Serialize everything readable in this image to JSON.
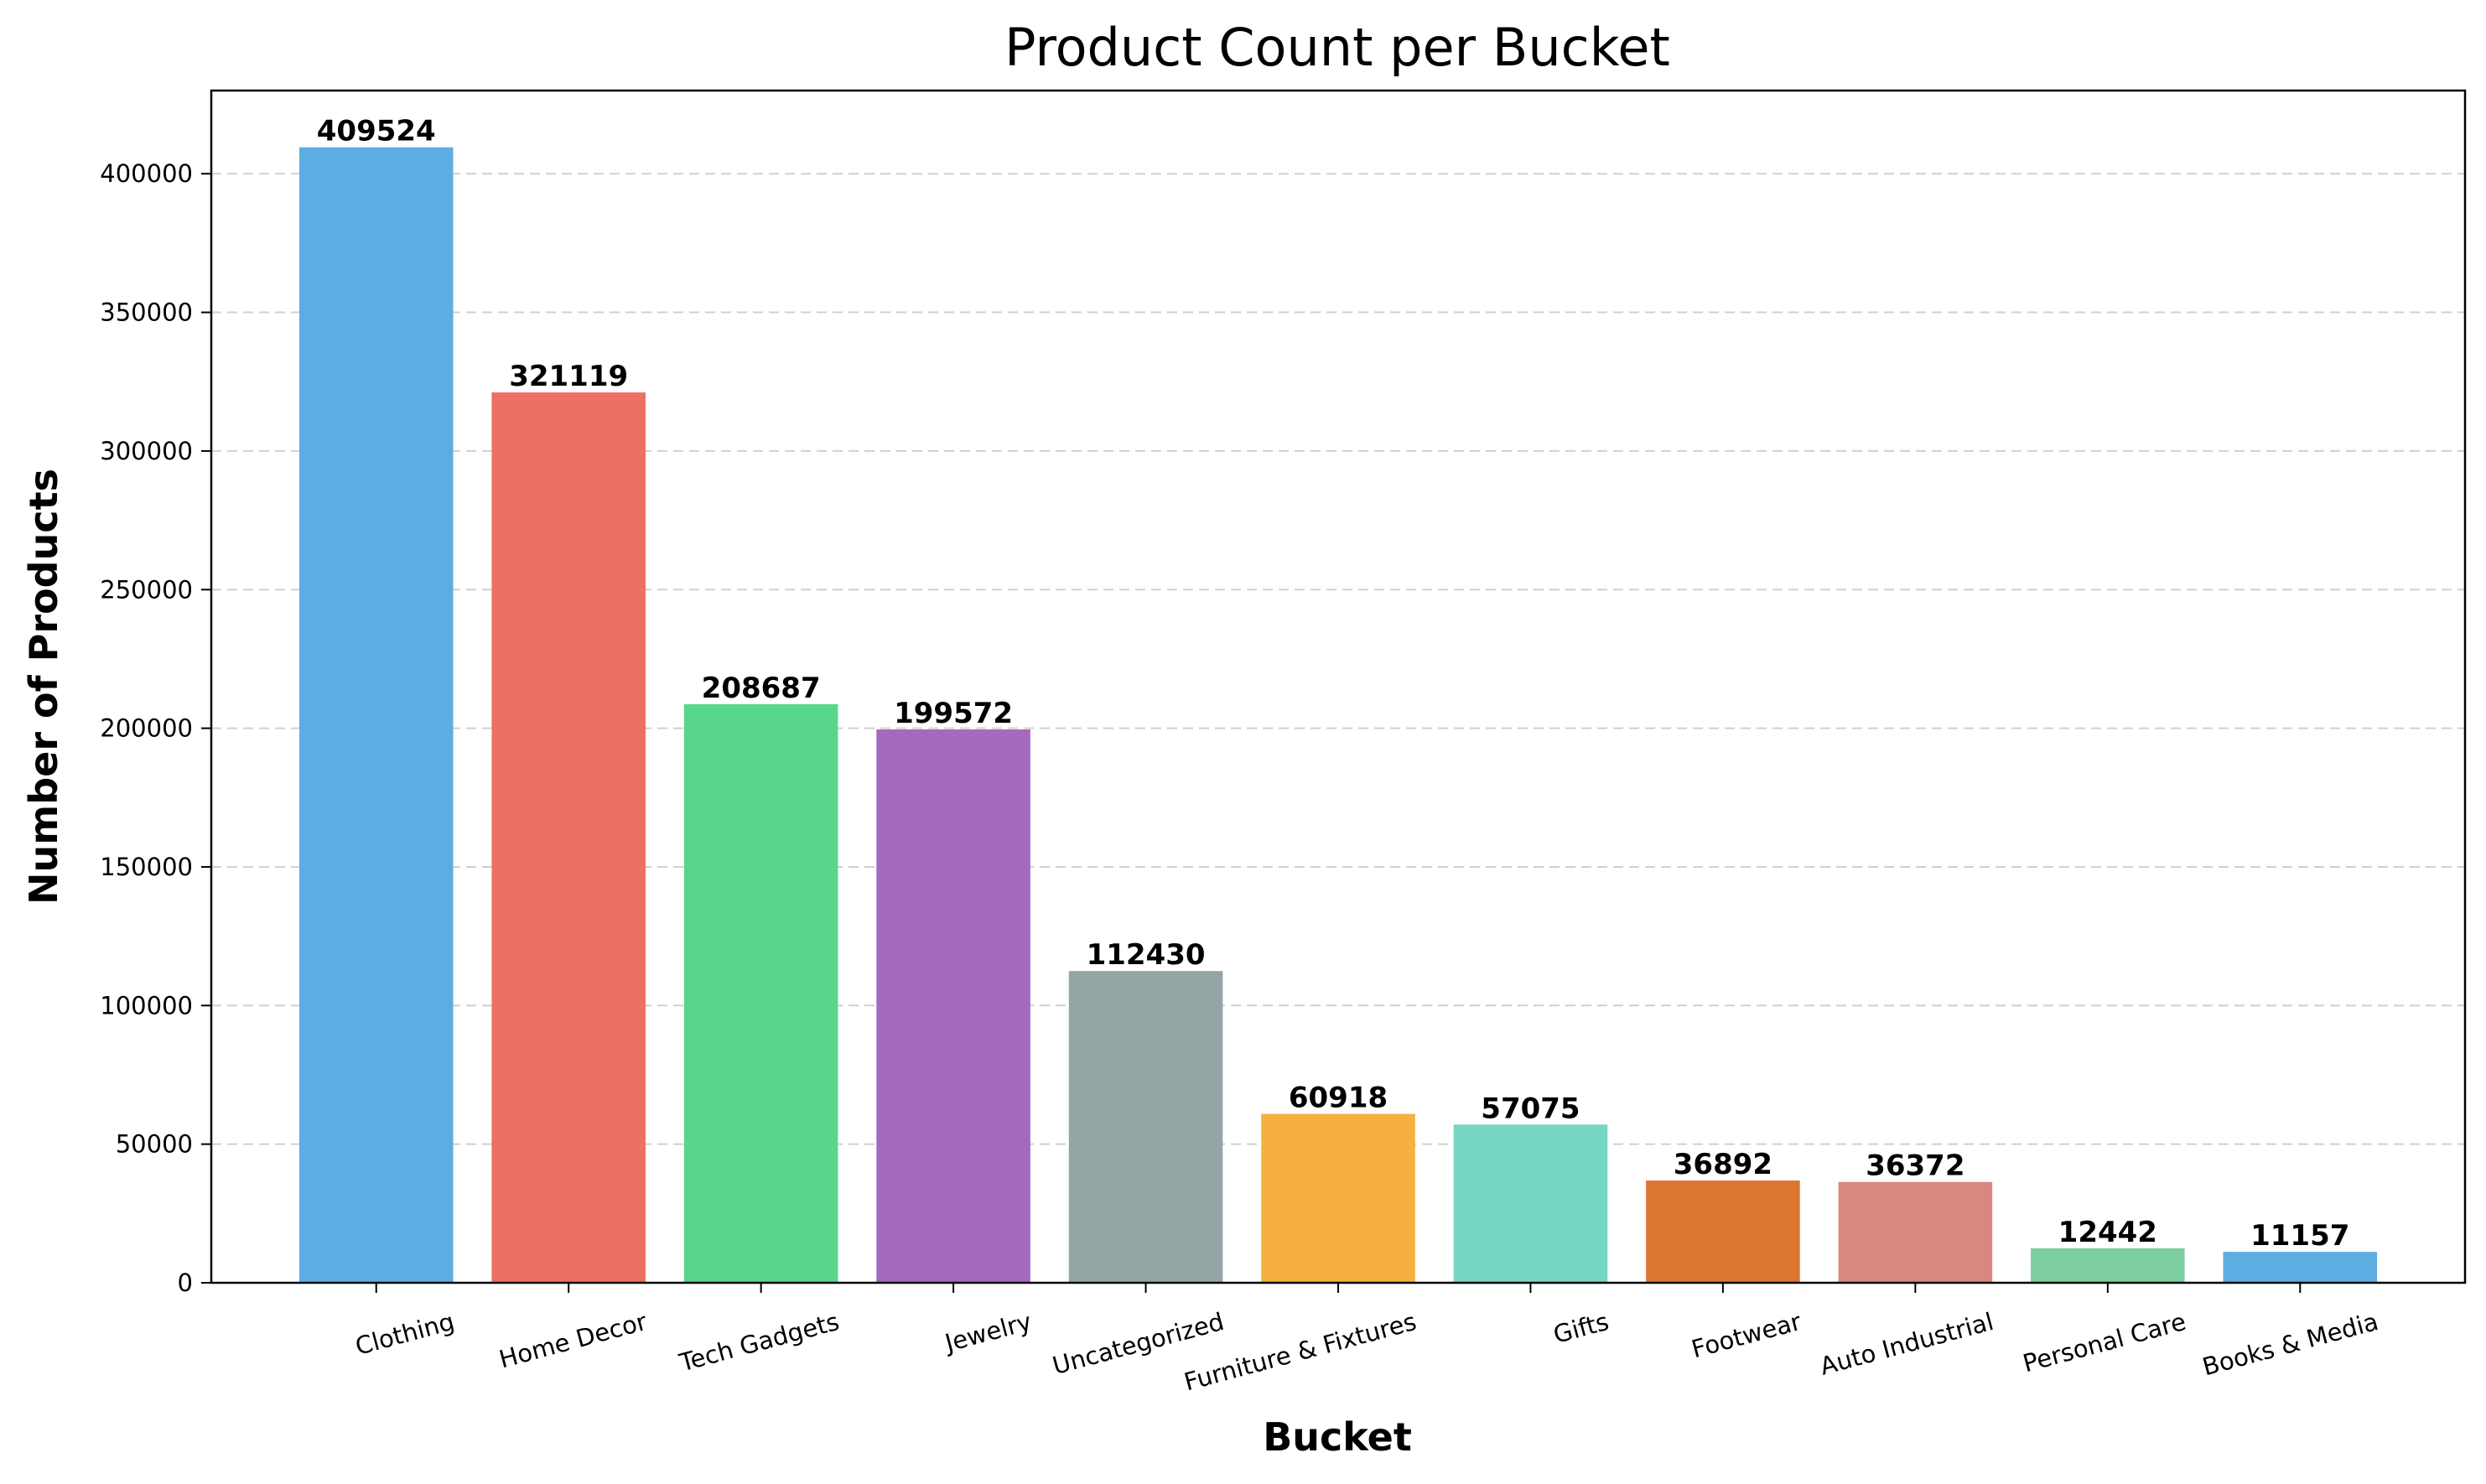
{
  "chart_data": {
    "type": "bar",
    "title": "Product Count per Bucket",
    "xlabel": "Bucket",
    "ylabel": "Number of Products",
    "categories": [
      "Clothing",
      "Home Decor",
      "Tech Gadgets",
      "Jewelry",
      "Uncategorized",
      "Furniture & Fixtures",
      "Gifts",
      "Footwear",
      "Auto Industrial",
      "Personal Care",
      "Books & Media"
    ],
    "values": [
      409524,
      321119,
      208687,
      199572,
      112430,
      60918,
      57075,
      36892,
      36372,
      12442,
      11157
    ],
    "colors": [
      "#5dade2",
      "#ec7063",
      "#58d68d",
      "#a569bd",
      "#95a5a6",
      "#f5b041",
      "#76d7c4",
      "#dc7633",
      "#d98880",
      "#7dcea0",
      "#5dade2"
    ],
    "ylim": [
      0,
      430000
    ],
    "yticks": [
      0,
      50000,
      100000,
      150000,
      200000,
      250000,
      300000,
      350000,
      400000
    ],
    "grid": "y-dashed",
    "data_labels": true
  }
}
